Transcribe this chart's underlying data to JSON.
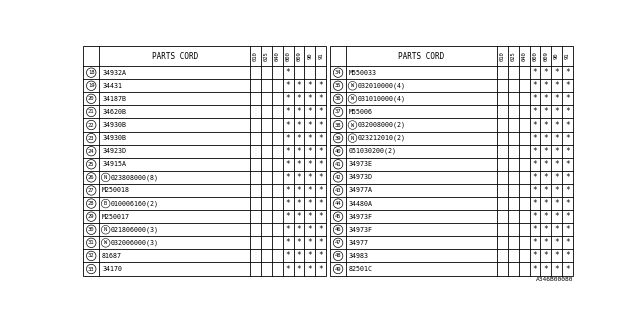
{
  "title": "PARTS CORD",
  "col_headers": [
    "010",
    "025",
    "040",
    "000",
    "009",
    "90",
    "91"
  ],
  "bg_color": "#ffffff",
  "border_color": "#000000",
  "text_color": "#000000",
  "footnote": "A346B00080",
  "left_table": {
    "rows": [
      {
        "num": "18",
        "part": "34932A",
        "prefix": "",
        "marks": [
          0,
          0,
          0,
          1,
          0,
          0,
          0
        ]
      },
      {
        "num": "19",
        "part": "34431",
        "prefix": "",
        "marks": [
          0,
          0,
          0,
          1,
          1,
          1,
          1
        ]
      },
      {
        "num": "20",
        "part": "34187B",
        "prefix": "",
        "marks": [
          0,
          0,
          0,
          1,
          1,
          1,
          1
        ]
      },
      {
        "num": "21",
        "part": "34620B",
        "prefix": "",
        "marks": [
          0,
          0,
          0,
          1,
          1,
          1,
          1
        ]
      },
      {
        "num": "22",
        "part": "34930B",
        "prefix": "",
        "marks": [
          0,
          0,
          0,
          1,
          1,
          1,
          1
        ]
      },
      {
        "num": "23",
        "part": "34930B",
        "prefix": "",
        "marks": [
          0,
          0,
          0,
          1,
          1,
          1,
          1
        ]
      },
      {
        "num": "24",
        "part": "34923D",
        "prefix": "",
        "marks": [
          0,
          0,
          0,
          1,
          1,
          1,
          1
        ]
      },
      {
        "num": "25",
        "part": "34915A",
        "prefix": "",
        "marks": [
          0,
          0,
          0,
          1,
          1,
          1,
          1
        ]
      },
      {
        "num": "26",
        "part": "023808000(8)",
        "prefix": "N",
        "marks": [
          0,
          0,
          0,
          1,
          1,
          1,
          1
        ]
      },
      {
        "num": "27",
        "part": "M250018",
        "prefix": "",
        "marks": [
          0,
          0,
          0,
          1,
          1,
          1,
          1
        ]
      },
      {
        "num": "28",
        "part": "010006160(2)",
        "prefix": "B",
        "marks": [
          0,
          0,
          0,
          1,
          1,
          1,
          1
        ]
      },
      {
        "num": "29",
        "part": "M250017",
        "prefix": "",
        "marks": [
          0,
          0,
          0,
          1,
          1,
          1,
          1
        ]
      },
      {
        "num": "30",
        "part": "021806000(3)",
        "prefix": "N",
        "marks": [
          0,
          0,
          0,
          1,
          1,
          1,
          1
        ]
      },
      {
        "num": "31",
        "part": "032006000(3)",
        "prefix": "W",
        "marks": [
          0,
          0,
          0,
          1,
          1,
          1,
          1
        ]
      },
      {
        "num": "32",
        "part": "81687",
        "prefix": "",
        "marks": [
          0,
          0,
          0,
          1,
          1,
          1,
          1
        ]
      },
      {
        "num": "33",
        "part": "34170",
        "prefix": "",
        "marks": [
          0,
          0,
          0,
          1,
          1,
          1,
          1
        ]
      }
    ]
  },
  "right_table": {
    "rows": [
      {
        "num": "34",
        "part": "M550033",
        "prefix": "",
        "marks": [
          0,
          0,
          0,
          1,
          1,
          1,
          1
        ]
      },
      {
        "num": "35",
        "part": "032010000(4)",
        "prefix": "W",
        "marks": [
          0,
          0,
          0,
          1,
          1,
          1,
          1
        ]
      },
      {
        "num": "36",
        "part": "031010000(4)",
        "prefix": "W",
        "marks": [
          0,
          0,
          0,
          1,
          1,
          1,
          1
        ]
      },
      {
        "num": "37",
        "part": "M55006",
        "prefix": "",
        "marks": [
          0,
          0,
          0,
          1,
          1,
          1,
          1
        ]
      },
      {
        "num": "38",
        "part": "032008000(2)",
        "prefix": "W",
        "marks": [
          0,
          0,
          0,
          1,
          1,
          1,
          1
        ]
      },
      {
        "num": "39",
        "part": "023212010(2)",
        "prefix": "N",
        "marks": [
          0,
          0,
          0,
          1,
          1,
          1,
          1
        ]
      },
      {
        "num": "40",
        "part": "051030200(2)",
        "prefix": "",
        "marks": [
          0,
          0,
          0,
          1,
          1,
          1,
          1
        ]
      },
      {
        "num": "41",
        "part": "34973E",
        "prefix": "",
        "marks": [
          0,
          0,
          0,
          1,
          1,
          1,
          1
        ]
      },
      {
        "num": "42",
        "part": "34973D",
        "prefix": "",
        "marks": [
          0,
          0,
          0,
          1,
          1,
          1,
          1
        ]
      },
      {
        "num": "43",
        "part": "34977A",
        "prefix": "",
        "marks": [
          0,
          0,
          0,
          1,
          1,
          1,
          1
        ]
      },
      {
        "num": "44",
        "part": "34480A",
        "prefix": "",
        "marks": [
          0,
          0,
          0,
          1,
          1,
          1,
          1
        ]
      },
      {
        "num": "45",
        "part": "34973F",
        "prefix": "",
        "marks": [
          0,
          0,
          0,
          1,
          1,
          1,
          1
        ]
      },
      {
        "num": "46",
        "part": "34973F",
        "prefix": "",
        "marks": [
          0,
          0,
          0,
          1,
          1,
          1,
          1
        ]
      },
      {
        "num": "47",
        "part": "34977",
        "prefix": "",
        "marks": [
          0,
          0,
          0,
          1,
          1,
          1,
          1
        ]
      },
      {
        "num": "48",
        "part": "34983",
        "prefix": "",
        "marks": [
          0,
          0,
          0,
          1,
          1,
          1,
          1
        ]
      },
      {
        "num": "49",
        "part": "82501C",
        "prefix": "",
        "marks": [
          0,
          0,
          0,
          1,
          1,
          1,
          1
        ]
      }
    ]
  }
}
